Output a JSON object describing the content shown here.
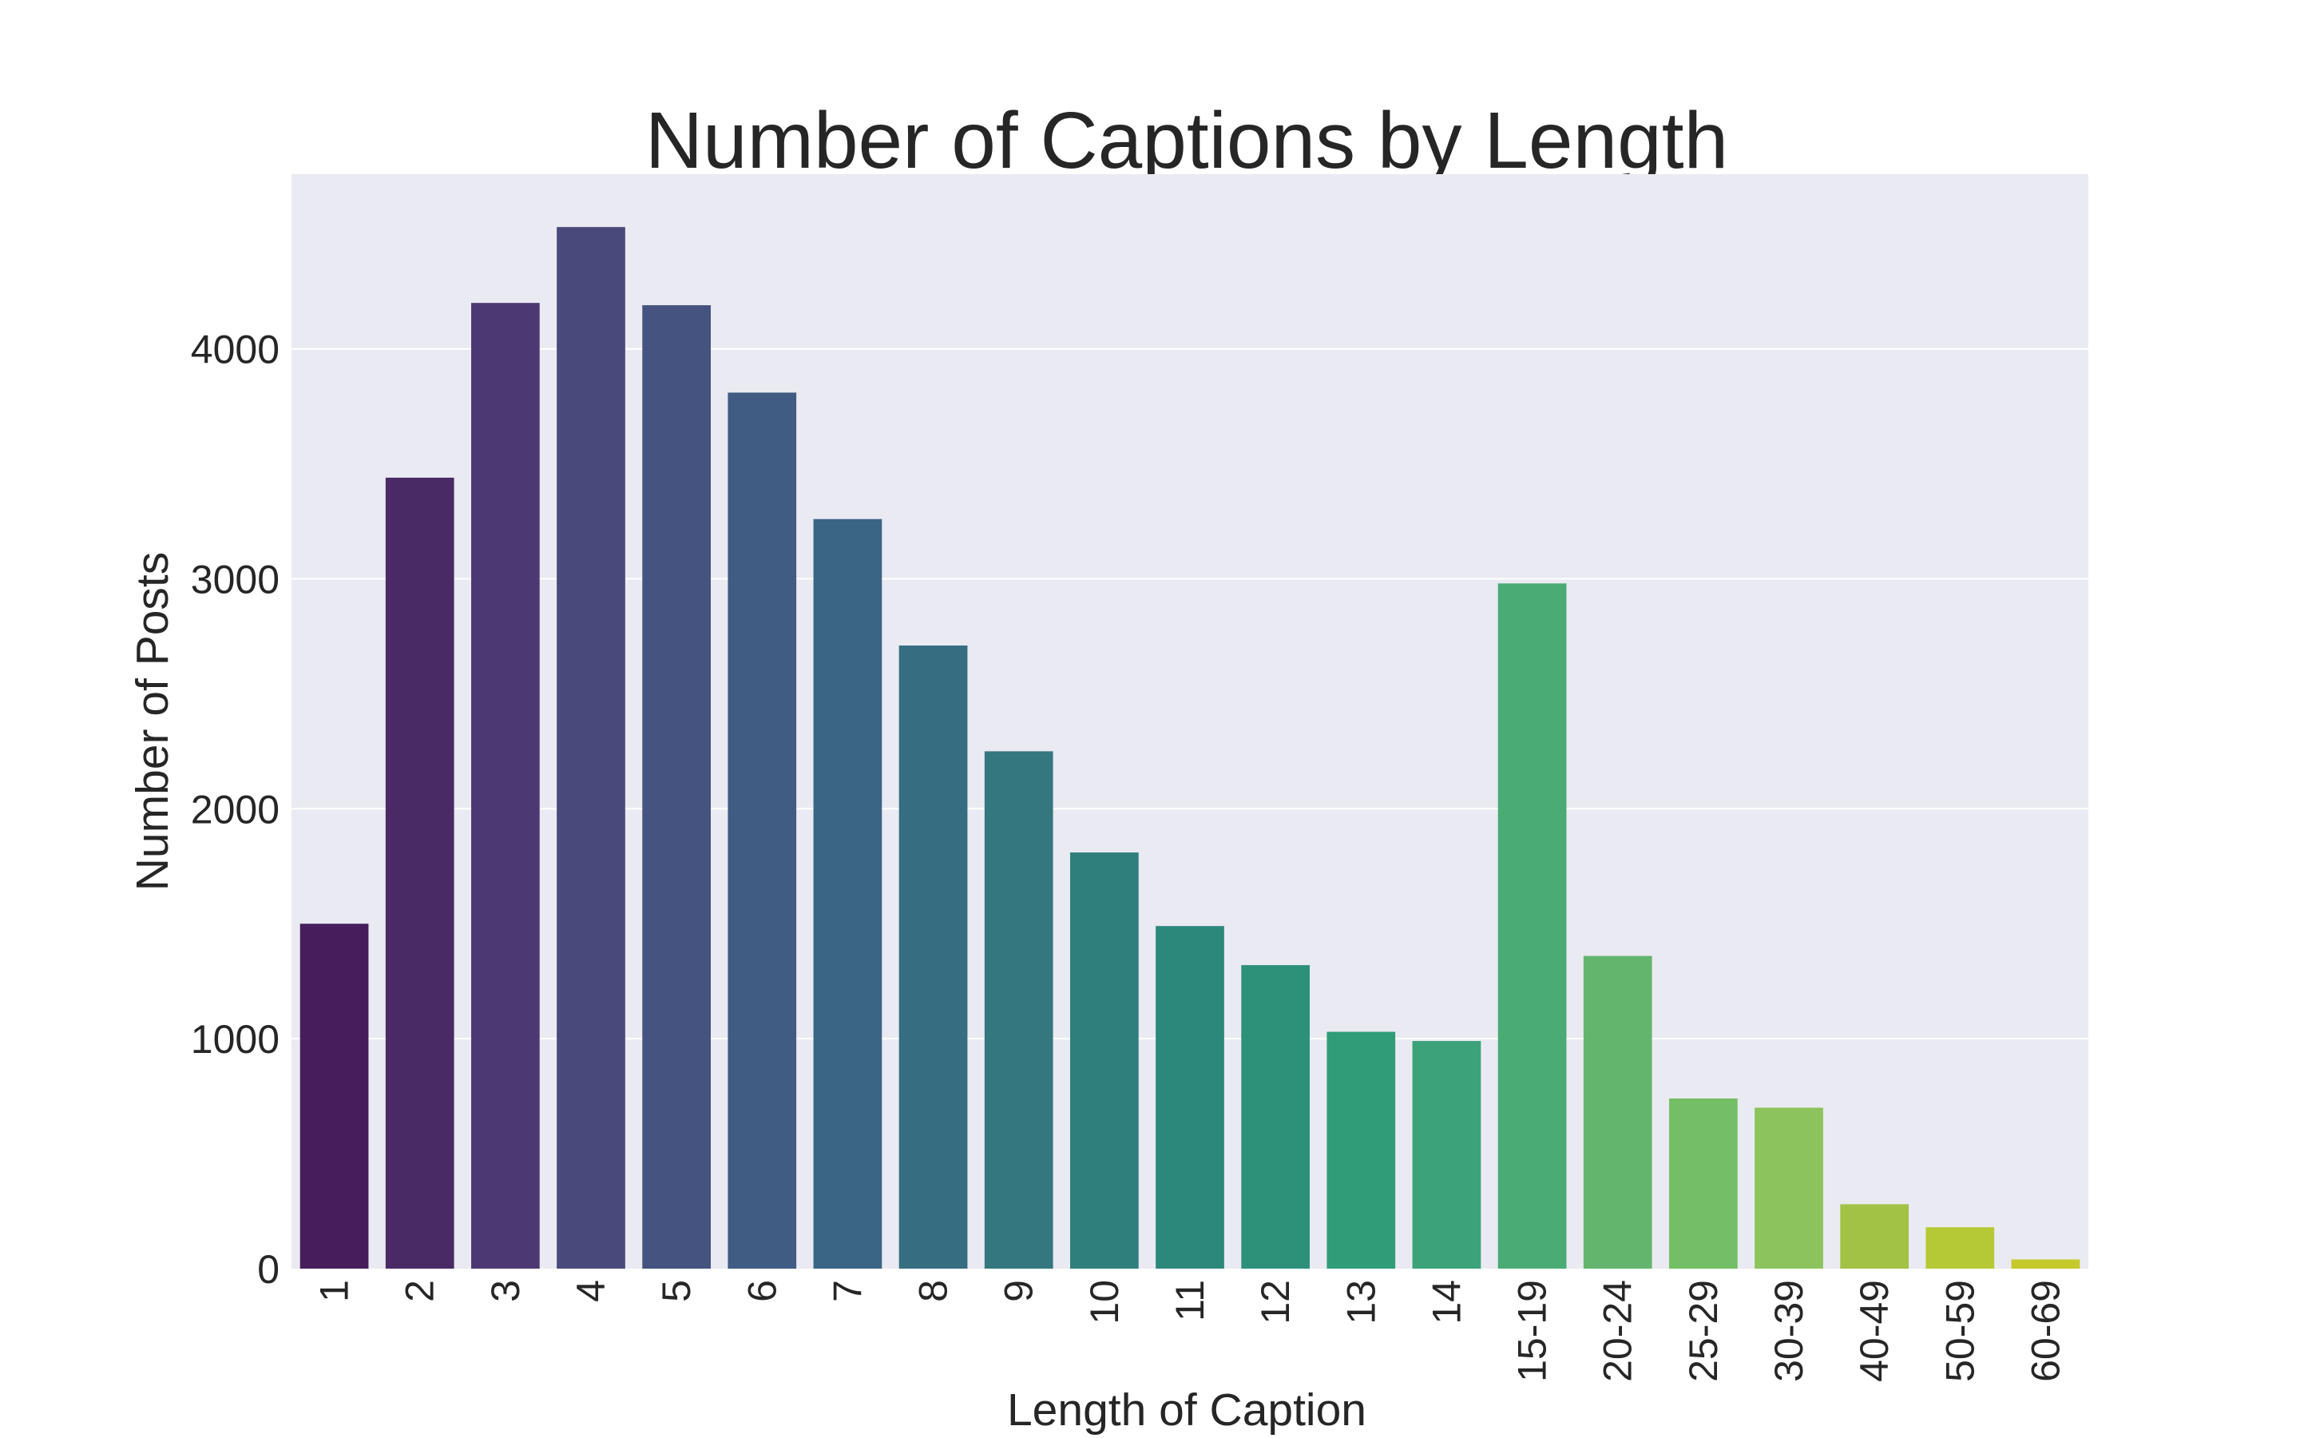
{
  "chart_data": {
    "type": "bar",
    "title": "Number of Captions by Length",
    "xlabel": "Length of Caption",
    "ylabel": "Number of Posts",
    "categories": [
      "1",
      "2",
      "3",
      "4",
      "5",
      "6",
      "7",
      "8",
      "9",
      "10",
      "11",
      "12",
      "13",
      "14",
      "15-19",
      "20-24",
      "25-29",
      "30-39",
      "40-49",
      "50-59",
      "60-69"
    ],
    "values": [
      1500,
      3440,
      4200,
      4530,
      4190,
      3810,
      3260,
      2710,
      2250,
      1810,
      1490,
      1320,
      1030,
      990,
      2980,
      1360,
      740,
      700,
      280,
      180,
      40
    ],
    "ylim": [
      0,
      4760
    ],
    "yticks": [
      0,
      1000,
      2000,
      3000,
      4000
    ],
    "ytick_labels": [
      "0",
      "1000",
      "2000",
      "3000",
      "4000"
    ],
    "grid": true,
    "palette": "viridis",
    "colors": [
      "#471d5b",
      "#4a2a65",
      "#4c3873",
      "#4a497b",
      "#44537f",
      "#415c82",
      "#3b6585",
      "#366d81",
      "#34777e",
      "#2f7f7d",
      "#2c887b",
      "#2d917a",
      "#319c78",
      "#3ca27a",
      "#4aab74",
      "#63b56e",
      "#74be65",
      "#8cc35c",
      "#a1c244",
      "#b4c935",
      "#c6c92b"
    ],
    "background": "#eaeaf2"
  }
}
